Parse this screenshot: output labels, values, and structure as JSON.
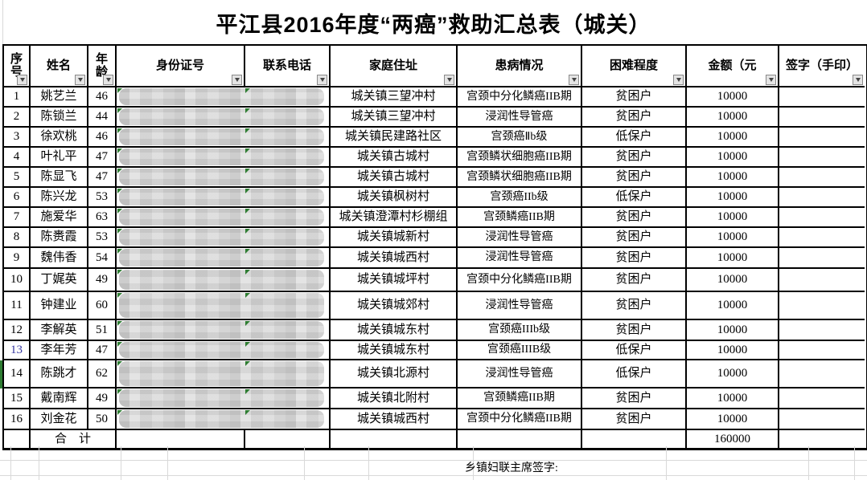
{
  "title": "平江县2016年度“两癌”救助汇总表（城关）",
  "columns": [
    {
      "key": "serial",
      "label": "序号"
    },
    {
      "key": "name",
      "label": "姓名"
    },
    {
      "key": "age",
      "label": "年龄"
    },
    {
      "key": "id",
      "label": "身份证号"
    },
    {
      "key": "phone",
      "label": "联系电话"
    },
    {
      "key": "address",
      "label": "家庭住址"
    },
    {
      "key": "illness",
      "label": "患病情况"
    },
    {
      "key": "difficulty",
      "label": "困难程度"
    },
    {
      "key": "amount",
      "label": "金额（元"
    },
    {
      "key": "signature",
      "label": "签字（手印）"
    }
  ],
  "rows": [
    {
      "no": "1",
      "name": "姚艺兰",
      "age": "46",
      "address": "城关镇三望冲村",
      "illness": "宫颈中分化鳞癌IIB期",
      "level": "贫困户",
      "amount": "10000",
      "sign": ""
    },
    {
      "no": "2",
      "name": "陈锁兰",
      "age": "44",
      "address": "城关镇三望冲村",
      "illness": "浸润性导管癌",
      "level": "贫困户",
      "amount": "10000",
      "sign": ""
    },
    {
      "no": "3",
      "name": "徐欢桃",
      "age": "46",
      "address": "城关镇民建路社区",
      "illness": "宫颈癌Ⅱb级",
      "level": "低保户",
      "amount": "10000",
      "sign": ""
    },
    {
      "no": "4",
      "name": "叶礼平",
      "age": "47",
      "address": "城关镇古城村",
      "illness": "宫颈鳞状细胞癌IIB期",
      "level": "贫困户",
      "amount": "10000",
      "sign": ""
    },
    {
      "no": "5",
      "name": "陈显飞",
      "age": "47",
      "address": "城关镇古城村",
      "illness": "宫颈鳞状细胞癌IIB期",
      "level": "贫困户",
      "amount": "10000",
      "sign": ""
    },
    {
      "no": "6",
      "name": "陈兴龙",
      "age": "53",
      "address": "城关镇枫树村",
      "illness": "宫颈癌IIb级",
      "level": "低保户",
      "amount": "10000",
      "sign": ""
    },
    {
      "no": "7",
      "name": "施爱华",
      "age": "63",
      "address": "城关镇澄潭村杉棚组",
      "illness": "宫颈鳞癌IIB期",
      "level": "贫困户",
      "amount": "10000",
      "sign": ""
    },
    {
      "no": "8",
      "name": "陈赉霞",
      "age": "53",
      "address": "城关镇城新村",
      "illness": "浸润性导管癌",
      "level": "贫困户",
      "amount": "10000",
      "sign": ""
    },
    {
      "no": "9",
      "name": "魏伟香",
      "age": "54",
      "address": "城关镇城西村",
      "illness": "浸润性导管癌",
      "level": "贫困户",
      "amount": "10000",
      "sign": ""
    },
    {
      "no": "10",
      "name": "丁娓英",
      "age": "49",
      "address": "城关镇城坪村",
      "illness": "宫颈中分化鳞癌IIB期",
      "level": "贫困户",
      "amount": "10000",
      "sign": ""
    },
    {
      "no": "11",
      "name": "钟建业",
      "age": "60",
      "address": "城关镇城郊村",
      "illness": "浸润性导管癌",
      "level": "贫困户",
      "amount": "10000",
      "sign": ""
    },
    {
      "no": "12",
      "name": "李解英",
      "age": "51",
      "address": "城关镇城东村",
      "illness": "宫颈癌IIIb级",
      "level": "贫困户",
      "amount": "10000",
      "sign": ""
    },
    {
      "no": "13",
      "name": "李年芳",
      "age": "47",
      "address": "城关镇城东村",
      "illness": "宫颈癌IIIB级",
      "level": "低保户",
      "amount": "10000",
      "sign": "",
      "no_color": "#3536a0"
    },
    {
      "no": "14",
      "name": "陈跳才",
      "age": "62",
      "address": "城关镇北源村",
      "illness": "浸润性导管癌",
      "level": "低保户",
      "amount": "10000",
      "sign": "",
      "left_marker": true
    },
    {
      "no": "15",
      "name": "戴南辉",
      "age": "49",
      "address": "城关镇北附村",
      "illness": "宫颈鳞癌IIB期",
      "level": "贫困户",
      "amount": "10000",
      "sign": ""
    },
    {
      "no": "16",
      "name": "刘金花",
      "age": "50",
      "address": "城关镇城西村",
      "illness": "宫颈中分化鳞癌IIB期",
      "level": "贫困户",
      "amount": "10000",
      "sign": ""
    }
  ],
  "total_row": {
    "label": "合　计",
    "amount": "160000"
  },
  "footer": {
    "signature_label": "乡镇妇联主席签字:"
  },
  "icons": {
    "filter_dropdown": "chevron-down",
    "error_marker": "green-triangle"
  },
  "colors": {
    "table_border": "#000000",
    "serial13_blue": "#3536a0",
    "error_triangle_green": "#2e7d32",
    "blur_gray": "#d7d7d7",
    "gridline_gray": "#d9d9d9",
    "dropdown_bg": "#e4e4e4"
  }
}
